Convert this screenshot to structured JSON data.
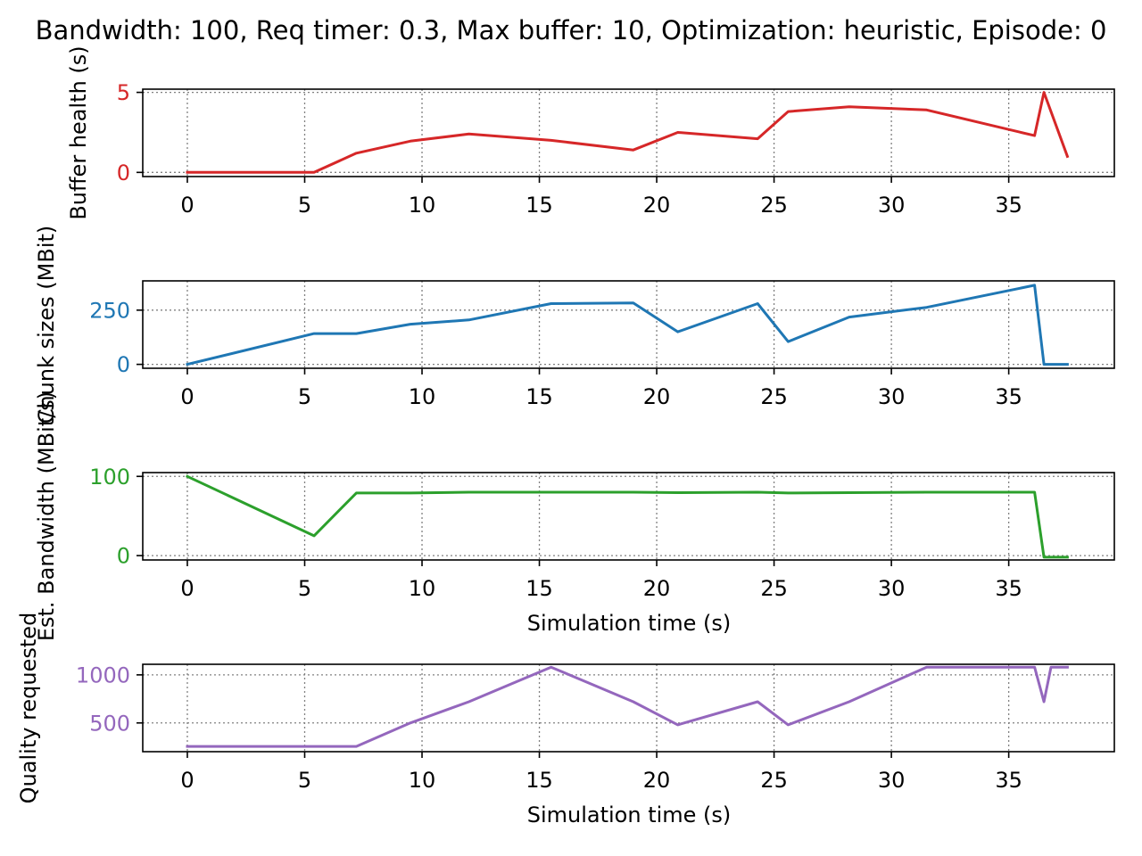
{
  "figure": {
    "title": "Bandwidth: 100, Req timer: 0.3, Max buffer: 10, Optimization: heuristic, Episode: 0"
  },
  "chart_data": [
    {
      "type": "line",
      "title": "",
      "xlabel": "",
      "ylabel": "Buffer health (s)",
      "color": "#d62728",
      "xlim": [
        -1.9,
        39.5
      ],
      "ylim": [
        -0.26,
        5.2
      ],
      "xticks": [
        0,
        5,
        10,
        15,
        20,
        25,
        30,
        35
      ],
      "yticks": [
        0,
        5
      ],
      "grid": true,
      "series": [
        {
          "x": [
            0,
            5.4,
            7.2,
            9.5,
            12.0,
            15.5,
            19.0,
            20.9,
            24.3,
            25.6,
            28.2,
            31.5,
            36.1,
            36.5,
            37.5
          ],
          "values": [
            0,
            0,
            1.2,
            1.95,
            2.4,
            2.0,
            1.4,
            2.5,
            2.1,
            3.8,
            4.1,
            3.9,
            2.3,
            5.0,
            1.0
          ]
        }
      ]
    },
    {
      "type": "line",
      "title": "",
      "xlabel": "",
      "ylabel": "Chunk sizes (MBit)",
      "color": "#1f77b4",
      "xlim": [
        -1.9,
        39.5
      ],
      "ylim": [
        -18,
        385
      ],
      "xticks": [
        0,
        5,
        10,
        15,
        20,
        25,
        30,
        35
      ],
      "yticks": [
        0,
        250
      ],
      "grid": true,
      "series": [
        {
          "x": [
            0,
            5.4,
            7.2,
            9.5,
            12.0,
            15.5,
            19.0,
            20.9,
            24.3,
            25.6,
            28.2,
            31.5,
            36.1,
            36.5,
            37.5
          ],
          "values": [
            0,
            142,
            142,
            185,
            205,
            280,
            283,
            150,
            280,
            105,
            218,
            263,
            365,
            0,
            0
          ]
        }
      ]
    },
    {
      "type": "line",
      "title": "",
      "xlabel": "Simulation time (s)",
      "ylabel": "Est. Bandwidth (MBit/s)",
      "color": "#2ca02c",
      "xlim": [
        -1.9,
        39.5
      ],
      "ylim": [
        -5.5,
        104.8
      ],
      "xticks": [
        0,
        5,
        10,
        15,
        20,
        25,
        30,
        35
      ],
      "yticks": [
        0,
        100
      ],
      "grid": true,
      "series": [
        {
          "x": [
            0,
            5.4,
            7.2,
            9.5,
            12.0,
            15.5,
            19.0,
            20.9,
            24.3,
            25.6,
            28.2,
            31.5,
            36.1,
            36.5,
            37.5
          ],
          "values": [
            100,
            25,
            79,
            79,
            80,
            80,
            80,
            79.5,
            80,
            79,
            79.5,
            80,
            80,
            -2,
            -2
          ]
        }
      ]
    },
    {
      "type": "line",
      "title": "",
      "xlabel": "Simulation time (s)",
      "ylabel": "Quality requested",
      "color": "#9467bd",
      "xlim": [
        -1.9,
        39.5
      ],
      "ylim": [
        201,
        1110
      ],
      "xticks": [
        0,
        5,
        10,
        15,
        20,
        25,
        30,
        35
      ],
      "yticks": [
        500,
        1000
      ],
      "grid": true,
      "series": [
        {
          "x": [
            0,
            7.2,
            9.5,
            12.0,
            15.5,
            19.0,
            20.9,
            24.3,
            25.6,
            28.2,
            31.5,
            36.1,
            36.5,
            36.8,
            37.5
          ],
          "values": [
            256,
            256,
            500,
            720,
            1080,
            720,
            480,
            720,
            480,
            720,
            1080,
            1080,
            720,
            1080,
            1080
          ]
        }
      ]
    }
  ]
}
